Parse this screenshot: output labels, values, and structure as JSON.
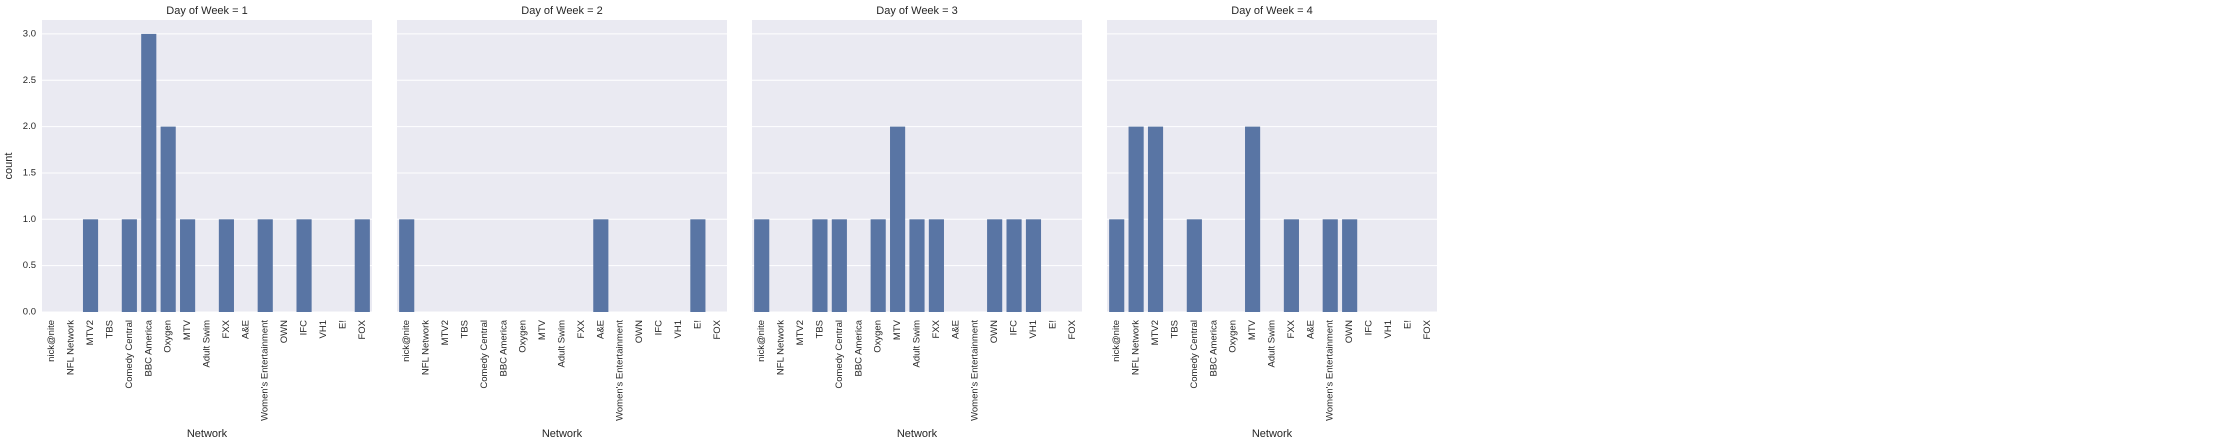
{
  "chart_data": {
    "type": "bar",
    "xlabel": "Network",
    "ylabel": "count",
    "ylim": [
      0,
      3.15
    ],
    "yticks": [
      "0.0",
      "0.5",
      "1.0",
      "1.5",
      "2.0",
      "2.5",
      "3.0"
    ],
    "grid": true,
    "bar_color": "#5975a4",
    "background_color": "#eaeaf2",
    "categories": [
      "nick@nite",
      "NFL Network",
      "MTV2",
      "TBS",
      "Comedy Central",
      "BBC America",
      "Oxygen",
      "MTV",
      "Adult Swim",
      "FXX",
      "A&E",
      "Women's Entertainment",
      "OWN",
      "IFC",
      "VH1",
      "E!",
      "FOX"
    ],
    "panels": [
      {
        "title": "Day of Week = 1",
        "values": [
          0,
          0,
          1,
          0,
          1,
          3,
          2,
          1,
          0,
          1,
          0,
          1,
          0,
          1,
          0,
          0,
          1
        ]
      },
      {
        "title": "Day of Week = 2",
        "values": [
          1,
          0,
          0,
          0,
          0,
          0,
          0,
          0,
          0,
          0,
          1,
          0,
          0,
          0,
          0,
          1,
          0
        ]
      },
      {
        "title": "Day of Week = 3",
        "values": [
          1,
          0,
          0,
          1,
          1,
          0,
          1,
          2,
          1,
          1,
          0,
          0,
          1,
          1,
          1,
          0,
          0
        ]
      },
      {
        "title": "Day of Week = 4",
        "values": [
          1,
          2,
          2,
          0,
          1,
          0,
          0,
          2,
          0,
          1,
          0,
          1,
          1,
          0,
          0,
          0,
          0
        ]
      }
    ]
  }
}
